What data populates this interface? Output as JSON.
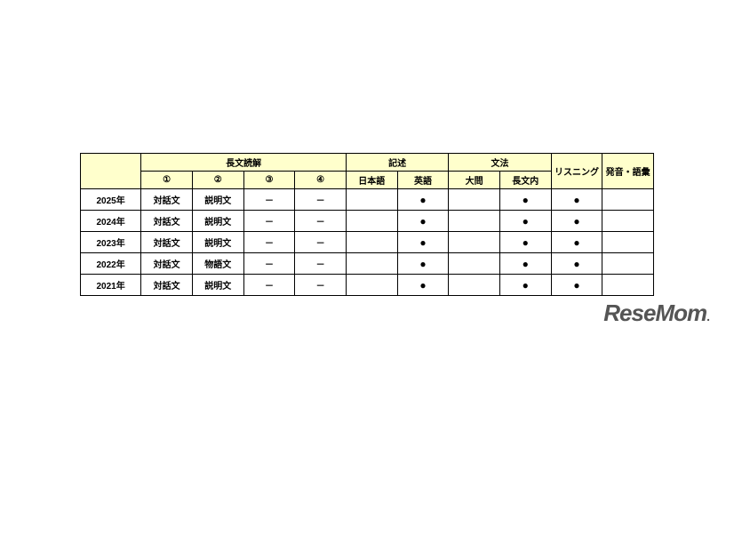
{
  "table": {
    "header_bg": "#ffffcc",
    "border_color": "#000000",
    "group_headers": {
      "reading": "長文読解",
      "writing": "記述",
      "grammar": "文法",
      "listening": "リスニング",
      "pronunciation": "発音・語彙"
    },
    "sub_headers": {
      "r1": "①",
      "r2": "②",
      "r3": "③",
      "r4": "④",
      "w1": "日本語",
      "w2": "英語",
      "g1": "大問",
      "g2": "長文内"
    },
    "rows": [
      {
        "year": "2025年",
        "r1": "対話文",
        "r2": "説明文",
        "r3": "－",
        "r4": "－",
        "w1": "",
        "w2": "●",
        "g1": "",
        "g2": "●",
        "listening": "●",
        "pron": ""
      },
      {
        "year": "2024年",
        "r1": "対話文",
        "r2": "説明文",
        "r3": "－",
        "r4": "－",
        "w1": "",
        "w2": "●",
        "g1": "",
        "g2": "●",
        "listening": "●",
        "pron": ""
      },
      {
        "year": "2023年",
        "r1": "対話文",
        "r2": "説明文",
        "r3": "－",
        "r4": "－",
        "w1": "",
        "w2": "●",
        "g1": "",
        "g2": "●",
        "listening": "●",
        "pron": ""
      },
      {
        "year": "2022年",
        "r1": "対話文",
        "r2": "物語文",
        "r3": "－",
        "r4": "－",
        "w1": "",
        "w2": "●",
        "g1": "",
        "g2": "●",
        "listening": "●",
        "pron": ""
      },
      {
        "year": "2021年",
        "r1": "対話文",
        "r2": "説明文",
        "r3": "－",
        "r4": "－",
        "w1": "",
        "w2": "●",
        "g1": "",
        "g2": "●",
        "listening": "●",
        "pron": ""
      }
    ]
  },
  "watermark": {
    "text_main": "ReseMom",
    "text_dot": "."
  }
}
